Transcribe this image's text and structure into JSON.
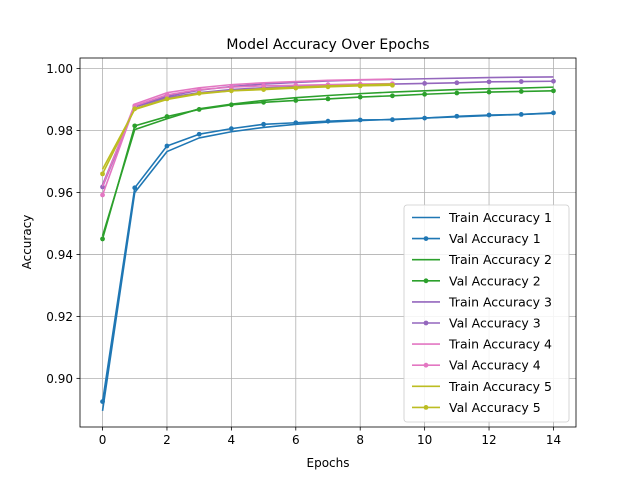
{
  "chart_data": {
    "type": "line",
    "title": "Model Accuracy Over Epochs",
    "xlabel": "Epochs",
    "ylabel": "Accuracy",
    "xlim": [
      -0.7,
      14.7
    ],
    "ylim": [
      0.8843,
      1.0034
    ],
    "xticks": [
      0,
      2,
      4,
      6,
      8,
      10,
      12,
      14
    ],
    "yticks": [
      0.9,
      0.92,
      0.94,
      0.96,
      0.98,
      1.0
    ],
    "ytick_labels": [
      "0.90",
      "0.92",
      "0.94",
      "0.96",
      "0.98",
      "1.00"
    ],
    "grid": true,
    "legend_position": "lower-right",
    "series": [
      {
        "name": "Train Accuracy 1",
        "color": "#1f77b4",
        "marker": false,
        "x": [
          0,
          1,
          2,
          3,
          4,
          5,
          6,
          7,
          8,
          9,
          10,
          11,
          12,
          13,
          14
        ],
        "values": [
          0.8895,
          0.96,
          0.9732,
          0.9776,
          0.9796,
          0.981,
          0.982,
          0.9827,
          0.9832,
          0.9836,
          0.984,
          0.9844,
          0.9848,
          0.9852,
          0.9856
        ]
      },
      {
        "name": "Val Accuracy 1",
        "color": "#1f77b4",
        "marker": true,
        "x": [
          0,
          1,
          2,
          3,
          4,
          5,
          6,
          7,
          8,
          9,
          10,
          11,
          12,
          13,
          14
        ],
        "values": [
          0.8925,
          0.9615,
          0.975,
          0.9788,
          0.9806,
          0.982,
          0.9825,
          0.983,
          0.9834,
          0.9835,
          0.984,
          0.9846,
          0.985,
          0.9852,
          0.9857
        ]
      },
      {
        "name": "Train Accuracy 2",
        "color": "#2ca02c",
        "marker": false,
        "x": [
          0,
          1,
          2,
          3,
          4,
          5,
          6,
          7,
          8,
          9,
          10,
          11,
          12,
          13,
          14
        ],
        "values": [
          0.946,
          0.9803,
          0.9838,
          0.987,
          0.9885,
          0.9897,
          0.9906,
          0.9913,
          0.9919,
          0.9924,
          0.9928,
          0.9932,
          0.9935,
          0.9937,
          0.994
        ]
      },
      {
        "name": "Val Accuracy 2",
        "color": "#2ca02c",
        "marker": true,
        "x": [
          0,
          1,
          2,
          3,
          4,
          5,
          6,
          7,
          8,
          9,
          10,
          11,
          12,
          13,
          14
        ],
        "values": [
          0.945,
          0.9815,
          0.9845,
          0.9868,
          0.9883,
          0.9891,
          0.9897,
          0.9902,
          0.9908,
          0.9912,
          0.9917,
          0.9921,
          0.9924,
          0.9926,
          0.9928
        ]
      },
      {
        "name": "Train Accuracy 3",
        "color": "#9467bd",
        "marker": false,
        "x": [
          0,
          1,
          2,
          3,
          4,
          5,
          6,
          7,
          8,
          9,
          10,
          11,
          12,
          13,
          14
        ],
        "values": [
          0.9625,
          0.9878,
          0.991,
          0.993,
          0.9942,
          0.995,
          0.9955,
          0.996,
          0.9963,
          0.9965,
          0.9967,
          0.9969,
          0.9971,
          0.9972,
          0.9973
        ]
      },
      {
        "name": "Val Accuracy 3",
        "color": "#9467bd",
        "marker": true,
        "x": [
          0,
          1,
          2,
          3,
          4,
          5,
          6,
          7,
          8,
          9,
          10,
          11,
          12,
          13,
          14
        ],
        "values": [
          0.9618,
          0.9876,
          0.9906,
          0.9922,
          0.9932,
          0.9938,
          0.9942,
          0.9945,
          0.9948,
          0.995,
          0.9952,
          0.9954,
          0.9957,
          0.9958,
          0.9959
        ]
      },
      {
        "name": "Train Accuracy 4",
        "color": "#e377c2",
        "marker": false,
        "x": [
          0,
          1,
          2,
          3,
          4,
          5,
          6,
          7,
          8,
          9
        ],
        "values": [
          0.962,
          0.9885,
          0.9922,
          0.9938,
          0.9948,
          0.9954,
          0.9958,
          0.9962,
          0.9964,
          0.9966
        ]
      },
      {
        "name": "Val Accuracy 4",
        "color": "#e377c2",
        "marker": true,
        "x": [
          0,
          1,
          2,
          3,
          4,
          5,
          6,
          7,
          8,
          9
        ],
        "values": [
          0.9592,
          0.988,
          0.9915,
          0.9932,
          0.994,
          0.9944,
          0.9946,
          0.9948,
          0.995,
          0.9951
        ]
      },
      {
        "name": "Train Accuracy 5",
        "color": "#bcbd22",
        "marker": false,
        "x": [
          0,
          1,
          2,
          3,
          4,
          5,
          6,
          7,
          8,
          9
        ],
        "values": [
          0.9675,
          0.9868,
          0.99,
          0.9918,
          0.9928,
          0.9935,
          0.994,
          0.9944,
          0.9947,
          0.995
        ]
      },
      {
        "name": "Val Accuracy 5",
        "color": "#bcbd22",
        "marker": true,
        "x": [
          0,
          1,
          2,
          3,
          4,
          5,
          6,
          7,
          8,
          9
        ],
        "values": [
          0.966,
          0.987,
          0.9902,
          0.992,
          0.9928,
          0.9932,
          0.9937,
          0.9941,
          0.9944,
          0.9946
        ]
      }
    ]
  }
}
